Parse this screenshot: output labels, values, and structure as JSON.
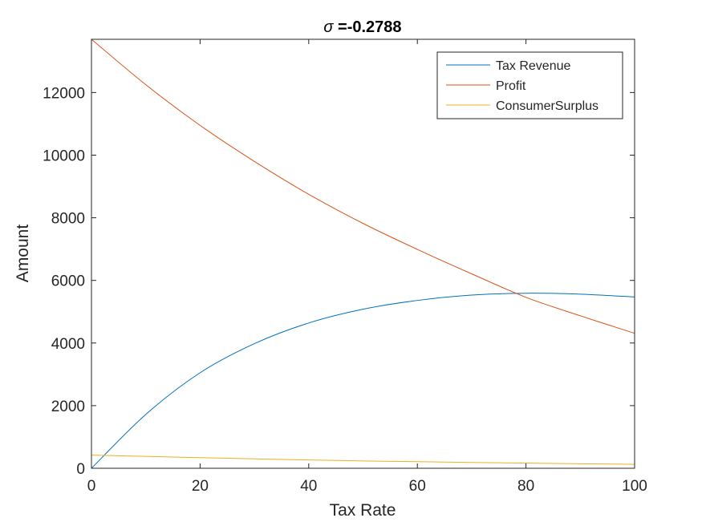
{
  "chart_data": {
    "type": "line",
    "title": {
      "symbol": "σ",
      "value": " =-0.2788"
    },
    "xlabel": "Tax Rate",
    "ylabel": "Amount",
    "xlim": [
      0,
      100
    ],
    "ylim": [
      0,
      13700
    ],
    "xticks": [
      0,
      20,
      40,
      60,
      80,
      100
    ],
    "yticks": [
      0,
      2000,
      4000,
      6000,
      8000,
      10000,
      12000
    ],
    "xtick_labels": [
      "0",
      "20",
      "40",
      "60",
      "80",
      "100"
    ],
    "ytick_labels": [
      "0",
      "2000",
      "4000",
      "6000",
      "8000",
      "10000",
      "12000"
    ],
    "grid": false,
    "legend_position": "top-right",
    "x": [
      0,
      10,
      20,
      30,
      40,
      50,
      60,
      70,
      80,
      90,
      100
    ],
    "series": [
      {
        "name": "Tax Revenue",
        "color": "#0072bd",
        "values": [
          0,
          1720,
          3050,
          3980,
          4640,
          5080,
          5360,
          5530,
          5590,
          5560,
          5470
        ]
      },
      {
        "name": "Profit",
        "color": "#d95319",
        "values": [
          13700,
          12250,
          10950,
          9800,
          8750,
          7820,
          6990,
          6210,
          5460,
          4870,
          4310
        ]
      },
      {
        "name": "ConsumerSurplus",
        "color": "#edb120",
        "values": [
          420,
          380,
          340,
          300,
          265,
          235,
          210,
          185,
          165,
          145,
          125
        ]
      }
    ]
  }
}
